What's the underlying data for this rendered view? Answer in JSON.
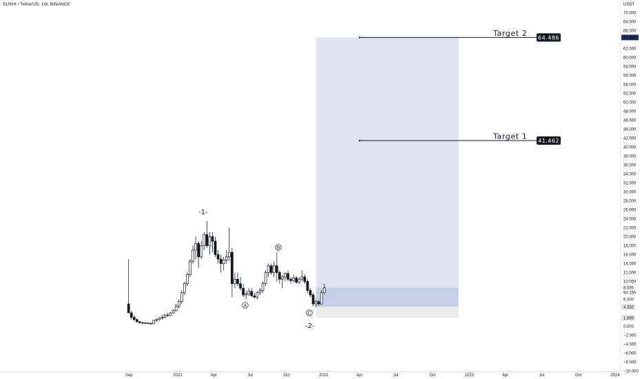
{
  "header": {
    "symbol_title": "SUSHI / TetherUS, 1W, BINANCE"
  },
  "axis": {
    "unit": "USDT",
    "y_ticks": [
      "70.000",
      "68.000",
      "66.000",
      "62.000",
      "60.000",
      "58.000",
      "56.000",
      "54.000",
      "52.000",
      "50.000",
      "48.000",
      "46.000",
      "44.000",
      "42.000",
      "40.000",
      "38.000",
      "36.000",
      "34.000",
      "32.000",
      "30.000",
      "28.000",
      "26.000",
      "24.000",
      "22.000",
      "20.000",
      "18.000",
      "16.000",
      "14.000",
      "12.000",
      "10.000",
      "6.000",
      "2.000",
      "0.000",
      "−2.000",
      "−4.000",
      "−6.000",
      "−8.000",
      "−10.000"
    ],
    "x_ticks": [
      "Sep",
      "2021",
      "Apr",
      "Jul",
      "Oct",
      "2022",
      "Apr",
      "Jul",
      "Oct",
      "2023",
      "Apr",
      "Jul",
      "Oct",
      "2024"
    ],
    "badges": [
      {
        "text": "64.486",
        "value": 64.486,
        "style": "dark"
      },
      {
        "text": "8.595",
        "sub": "5d 15h",
        "value": 8.595,
        "style": "plain"
      },
      {
        "text": "4.332",
        "value": 4.332,
        "style": "grey"
      },
      {
        "text": "1.869",
        "value": 1.869,
        "style": "grey"
      }
    ]
  },
  "annotations": {
    "wave_1": "-1-",
    "wave_2": "-2-",
    "label_a": "A",
    "label_b": "B",
    "label_c": "C",
    "target_1_text": "Target 1",
    "target_1_value": "41.462",
    "target_2_text": "Target 2",
    "target_2_value": "64.486"
  },
  "colors": {
    "candle": "#131722",
    "target_zone": "#dfe3f0",
    "entry_zone": "#c5cfe8",
    "stop_zone": "#ececec",
    "label_bg": "#131722",
    "price_badge_bg": "#1e2c5a"
  },
  "chart_data": {
    "type": "candlestick",
    "title": "SUSHI / TetherUS, 1W, BINANCE",
    "x_range": [
      "2020-08-15",
      "2024-01-31"
    ],
    "y_range": [
      -10,
      72
    ],
    "targets": [
      {
        "name": "Target 1",
        "value": 41.462
      },
      {
        "name": "Target 2",
        "value": 64.486
      }
    ],
    "position_zones": {
      "start": "2021-12-13",
      "end": "2022-12-05",
      "target_top": 64.486,
      "entry_top": 8.595,
      "entry_bottom": 4.332,
      "stop": 1.869
    },
    "candles": [
      {
        "d": "2020-08-31",
        "o": 5.0,
        "h": 15.0,
        "l": 3.0,
        "c": 3.0
      },
      {
        "d": "2020-09-07",
        "o": 3.0,
        "h": 3.5,
        "l": 1.5,
        "c": 2.0
      },
      {
        "d": "2020-09-14",
        "o": 2.0,
        "h": 2.5,
        "l": 1.2,
        "c": 1.5
      },
      {
        "d": "2020-09-21",
        "o": 1.5,
        "h": 1.8,
        "l": 0.9,
        "c": 1.0
      },
      {
        "d": "2020-09-28",
        "o": 1.0,
        "h": 1.2,
        "l": 0.7,
        "c": 0.8
      },
      {
        "d": "2020-10-05",
        "o": 0.8,
        "h": 1.0,
        "l": 0.6,
        "c": 0.75
      },
      {
        "d": "2020-10-12",
        "o": 0.75,
        "h": 0.9,
        "l": 0.55,
        "c": 0.7
      },
      {
        "d": "2020-10-19",
        "o": 0.7,
        "h": 0.9,
        "l": 0.55,
        "c": 0.65
      },
      {
        "d": "2020-10-26",
        "o": 0.65,
        "h": 0.8,
        "l": 0.5,
        "c": 0.6
      },
      {
        "d": "2020-11-02",
        "o": 0.6,
        "h": 1.5,
        "l": 0.5,
        "c": 1.3
      },
      {
        "d": "2020-11-09",
        "o": 1.3,
        "h": 1.8,
        "l": 1.0,
        "c": 1.5
      },
      {
        "d": "2020-11-16",
        "o": 1.5,
        "h": 2.0,
        "l": 1.2,
        "c": 1.8
      },
      {
        "d": "2020-11-23",
        "o": 1.8,
        "h": 2.5,
        "l": 1.5,
        "c": 2.0
      },
      {
        "d": "2020-11-30",
        "o": 2.0,
        "h": 2.8,
        "l": 1.8,
        "c": 2.5
      },
      {
        "d": "2020-12-07",
        "o": 2.5,
        "h": 3.0,
        "l": 2.2,
        "c": 2.4
      },
      {
        "d": "2020-12-14",
        "o": 2.4,
        "h": 3.2,
        "l": 2.3,
        "c": 3.0
      },
      {
        "d": "2020-12-21",
        "o": 3.0,
        "h": 3.8,
        "l": 2.8,
        "c": 3.5
      },
      {
        "d": "2020-12-28",
        "o": 3.5,
        "h": 5.0,
        "l": 3.3,
        "c": 4.5
      },
      {
        "d": "2021-01-04",
        "o": 4.5,
        "h": 6.0,
        "l": 4.0,
        "c": 5.5
      },
      {
        "d": "2021-01-11",
        "o": 5.5,
        "h": 8.0,
        "l": 5.0,
        "c": 7.5
      },
      {
        "d": "2021-01-18",
        "o": 7.5,
        "h": 10.0,
        "l": 7.0,
        "c": 9.5
      },
      {
        "d": "2021-01-25",
        "o": 9.5,
        "h": 12.0,
        "l": 9.0,
        "c": 11.5
      },
      {
        "d": "2021-02-01",
        "o": 11.5,
        "h": 15.0,
        "l": 11.0,
        "c": 14.5
      },
      {
        "d": "2021-02-08",
        "o": 14.5,
        "h": 18.0,
        "l": 14.0,
        "c": 17.0
      },
      {
        "d": "2021-02-15",
        "o": 17.0,
        "h": 20.0,
        "l": 15.0,
        "c": 18.5
      },
      {
        "d": "2021-02-22",
        "o": 18.5,
        "h": 19.0,
        "l": 13.0,
        "c": 15.5
      },
      {
        "d": "2021-03-01",
        "o": 15.5,
        "h": 19.0,
        "l": 15.0,
        "c": 18.0
      },
      {
        "d": "2021-03-08",
        "o": 18.0,
        "h": 21.0,
        "l": 17.0,
        "c": 20.5
      },
      {
        "d": "2021-03-15",
        "o": 20.5,
        "h": 23.5,
        "l": 17.5,
        "c": 18.0
      },
      {
        "d": "2021-03-22",
        "o": 18.0,
        "h": 21.0,
        "l": 16.0,
        "c": 20.0
      },
      {
        "d": "2021-03-29",
        "o": 20.0,
        "h": 21.0,
        "l": 16.5,
        "c": 19.0
      },
      {
        "d": "2021-04-05",
        "o": 19.0,
        "h": 20.0,
        "l": 15.5,
        "c": 16.0
      },
      {
        "d": "2021-04-12",
        "o": 16.0,
        "h": 17.0,
        "l": 14.0,
        "c": 15.0
      },
      {
        "d": "2021-04-19",
        "o": 15.0,
        "h": 16.0,
        "l": 12.0,
        "c": 14.0
      },
      {
        "d": "2021-04-26",
        "o": 14.0,
        "h": 15.5,
        "l": 12.5,
        "c": 14.8
      },
      {
        "d": "2021-05-03",
        "o": 14.8,
        "h": 17.0,
        "l": 14.0,
        "c": 15.5
      },
      {
        "d": "2021-05-10",
        "o": 15.5,
        "h": 22.0,
        "l": 14.5,
        "c": 16.5
      },
      {
        "d": "2021-05-17",
        "o": 16.5,
        "h": 17.5,
        "l": 6.5,
        "c": 9.5
      },
      {
        "d": "2021-05-24",
        "o": 9.5,
        "h": 12.0,
        "l": 8.5,
        "c": 10.5
      },
      {
        "d": "2021-05-31",
        "o": 10.5,
        "h": 12.0,
        "l": 9.0,
        "c": 9.5
      },
      {
        "d": "2021-06-07",
        "o": 9.5,
        "h": 11.0,
        "l": 8.0,
        "c": 8.5
      },
      {
        "d": "2021-06-14",
        "o": 8.5,
        "h": 9.5,
        "l": 6.5,
        "c": 7.0
      },
      {
        "d": "2021-06-21",
        "o": 7.0,
        "h": 8.0,
        "l": 6.0,
        "c": 7.2
      },
      {
        "d": "2021-06-28",
        "o": 7.2,
        "h": 8.5,
        "l": 6.8,
        "c": 7.8
      },
      {
        "d": "2021-07-05",
        "o": 7.8,
        "h": 8.5,
        "l": 6.5,
        "c": 6.8
      },
      {
        "d": "2021-07-12",
        "o": 6.8,
        "h": 7.5,
        "l": 6.2,
        "c": 6.5
      },
      {
        "d": "2021-07-19",
        "o": 6.5,
        "h": 7.8,
        "l": 6.0,
        "c": 7.5
      },
      {
        "d": "2021-07-26",
        "o": 7.5,
        "h": 8.5,
        "l": 7.0,
        "c": 8.0
      },
      {
        "d": "2021-08-02",
        "o": 8.0,
        "h": 10.0,
        "l": 7.5,
        "c": 9.5
      },
      {
        "d": "2021-08-09",
        "o": 9.5,
        "h": 12.5,
        "l": 9.0,
        "c": 12.0
      },
      {
        "d": "2021-08-16",
        "o": 12.0,
        "h": 14.0,
        "l": 11.0,
        "c": 13.5
      },
      {
        "d": "2021-08-23",
        "o": 13.5,
        "h": 14.0,
        "l": 11.5,
        "c": 12.0
      },
      {
        "d": "2021-08-30",
        "o": 12.0,
        "h": 14.5,
        "l": 11.0,
        "c": 13.5
      },
      {
        "d": "2021-09-06",
        "o": 13.5,
        "h": 16.5,
        "l": 10.0,
        "c": 12.0
      },
      {
        "d": "2021-09-13",
        "o": 12.0,
        "h": 12.5,
        "l": 9.5,
        "c": 10.5
      },
      {
        "d": "2021-09-20",
        "o": 10.5,
        "h": 11.5,
        "l": 8.5,
        "c": 11.0
      },
      {
        "d": "2021-09-27",
        "o": 11.0,
        "h": 12.0,
        "l": 10.0,
        "c": 11.8
      },
      {
        "d": "2021-10-04",
        "o": 11.8,
        "h": 12.5,
        "l": 10.0,
        "c": 10.5
      },
      {
        "d": "2021-10-11",
        "o": 10.5,
        "h": 11.0,
        "l": 9.5,
        "c": 10.2
      },
      {
        "d": "2021-10-18",
        "o": 10.2,
        "h": 11.5,
        "l": 9.8,
        "c": 10.8
      },
      {
        "d": "2021-10-25",
        "o": 10.8,
        "h": 11.2,
        "l": 9.5,
        "c": 9.8
      },
      {
        "d": "2021-11-01",
        "o": 9.8,
        "h": 11.0,
        "l": 9.5,
        "c": 10.5
      },
      {
        "d": "2021-11-08",
        "o": 10.5,
        "h": 12.5,
        "l": 10.0,
        "c": 11.0
      },
      {
        "d": "2021-11-15",
        "o": 11.0,
        "h": 11.5,
        "l": 9.5,
        "c": 10.0
      },
      {
        "d": "2021-11-22",
        "o": 10.0,
        "h": 10.5,
        "l": 7.5,
        "c": 8.0
      },
      {
        "d": "2021-11-29",
        "o": 8.0,
        "h": 8.5,
        "l": 6.5,
        "c": 7.0
      },
      {
        "d": "2021-12-06",
        "o": 7.0,
        "h": 7.5,
        "l": 4.5,
        "c": 5.0
      },
      {
        "d": "2021-12-13",
        "o": 5.0,
        "h": 6.0,
        "l": 4.3,
        "c": 5.5
      },
      {
        "d": "2021-12-20",
        "o": 5.5,
        "h": 5.8,
        "l": 4.6,
        "c": 5.0
      },
      {
        "d": "2021-12-27",
        "o": 5.0,
        "h": 8.0,
        "l": 4.8,
        "c": 7.5
      },
      {
        "d": "2022-01-03",
        "o": 7.5,
        "h": 9.5,
        "l": 7.2,
        "c": 8.6
      }
    ]
  }
}
